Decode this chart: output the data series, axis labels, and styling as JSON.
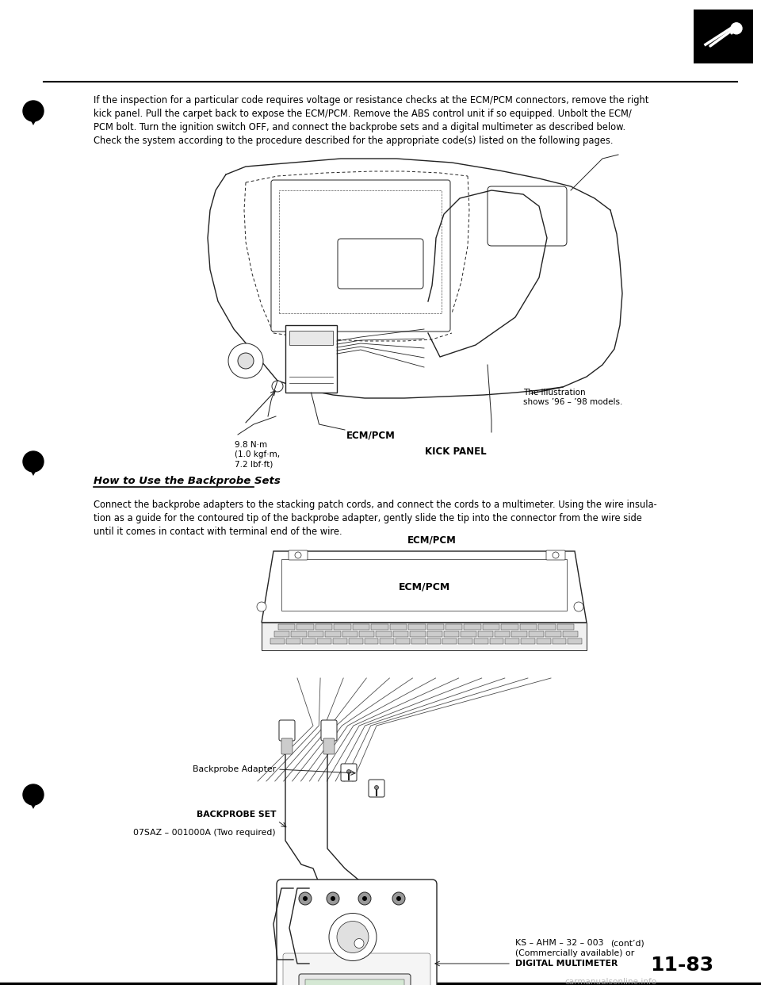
{
  "page_number": "11-83",
  "background_color": "#ffffff",
  "text_color": "#000000",
  "top_text_line1": "If the inspection for a particular code requires voltage or resistance checks at the ECM/PCM connectors, remove the right",
  "top_text_line2": "kick panel. Pull the carpet back to expose the ECM/PCM. Remove the ABS control unit if so equipped. Unbolt the ECM/",
  "top_text_line3": "PCM bolt. Turn the ignition switch OFF, and connect the backprobe sets and a digital multimeter as described below.",
  "top_text_line4": "Check the system according to the procedure described for the appropriate code(s) listed on the following pages.",
  "section_title": "How to Use the Backprobe Sets",
  "section_body_line1": "Connect the backprobe adapters to the stacking patch cords, and connect the cords to a multimeter. Using the wire insula-",
  "section_body_line2": "tion as a guide for the contoured tip of the backprobe adapter, gently slide the tip into the connector from the wire side",
  "section_body_line3": "until it comes in contact with terminal end of the wire.",
  "label_ecm_pcm": "ECM/PCM",
  "label_kick_panel": "KICK PANEL",
  "label_torque_line1": "9.8 N·m",
  "label_torque_line2": "(1.0 kgf·m,",
  "label_torque_line3": "7.2 lbf·ft)",
  "label_illustration_line1": "The illustration",
  "label_illustration_line2": "shows ’96 – ’98 models.",
  "label_backprobe_adapter": "Backprobe Adapter",
  "label_backprobe_set_line1": "BACKPROBE SET",
  "label_backprobe_set_line2": "07SAZ – 001000A (Two required)",
  "label_digital_multimeter_line1": "DIGITAL MULTIMETER",
  "label_digital_multimeter_line2": "(Commercially available) or",
  "label_digital_multimeter_line3": "KS – AHM – 32 – 003",
  "label_contd": "(cont’d)",
  "watermark": "carmanualsonline.info",
  "fig_width": 9.6,
  "fig_height": 12.42,
  "dpi": 100
}
